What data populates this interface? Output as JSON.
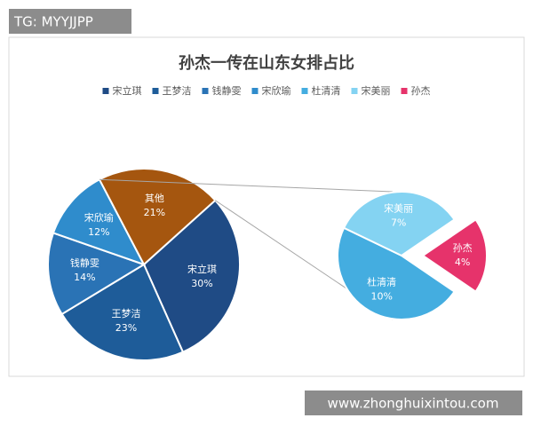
{
  "watermarks": {
    "top_left": "TG: MYYJJPP",
    "bottom_right": "www.zhonghuixintou.com"
  },
  "chart_data": {
    "type": "pie-of-pie",
    "title": "孙杰一传在山东女排占比",
    "main": {
      "categories": [
        "宋立琪",
        "王梦洁",
        "钱静雯",
        "宋欣瑜",
        "其他"
      ],
      "values": [
        30,
        23,
        14,
        12,
        21
      ],
      "value_labels": [
        "30%",
        "23%",
        "14%",
        "12%",
        "21%"
      ],
      "colors": [
        "#1f4b85",
        "#1e5c99",
        "#2a73b5",
        "#2f8ccc",
        "#a5560f"
      ]
    },
    "secondary": {
      "categories": [
        "杜清清",
        "宋美丽",
        "孙杰"
      ],
      "values": [
        10,
        7,
        4
      ],
      "value_labels": [
        "10%",
        "7%",
        "4%"
      ],
      "colors": [
        "#44ade0",
        "#84d3f2",
        "#e6336b"
      ]
    }
  }
}
